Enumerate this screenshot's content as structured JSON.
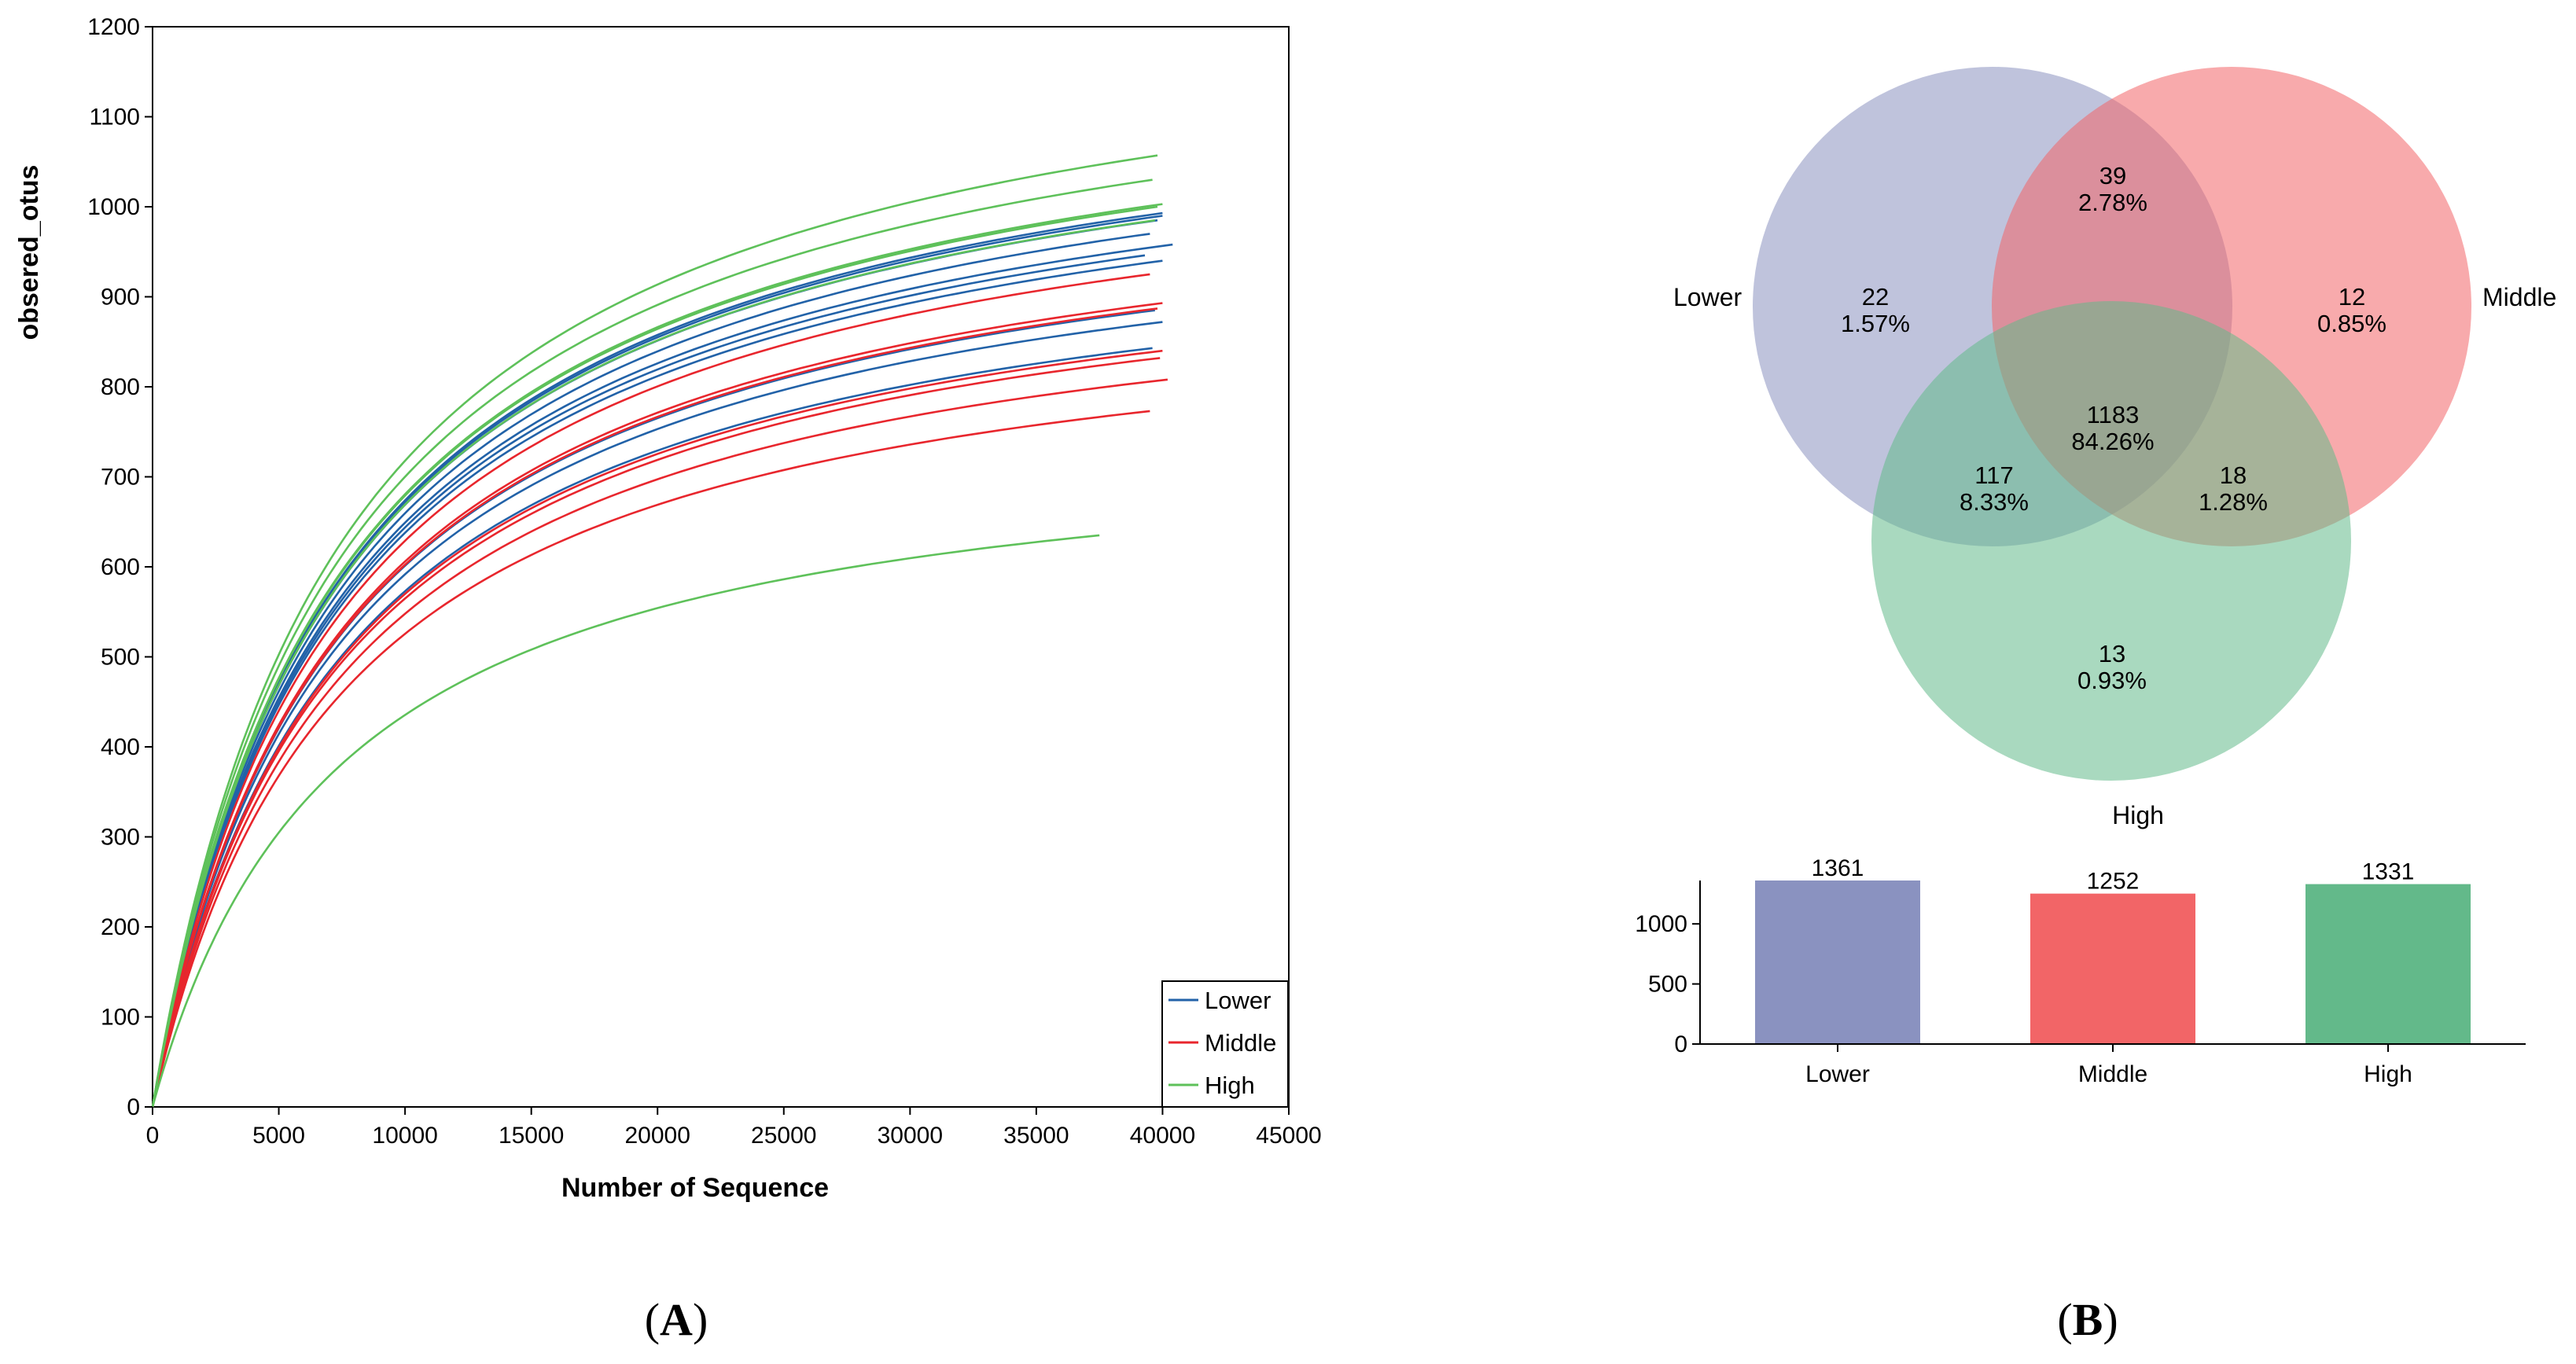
{
  "colors": {
    "lower": "#2262a8",
    "middle": "#e8262d",
    "high": "#5ec15a",
    "venn_lower": "#8a92c0",
    "venn_middle": "#f26567",
    "venn_high": "#63b98a"
  },
  "panel_labels": {
    "a_open": "(",
    "a_letter": "A",
    "a_close": ")",
    "b_open": "(",
    "b_letter": "B",
    "b_close": ")"
  },
  "chart_data": [
    {
      "type": "line",
      "title": "",
      "xlabel": "Number of Sequence",
      "ylabel": "obsered_otus",
      "xlim": [
        0,
        45000
      ],
      "ylim": [
        0,
        1200
      ],
      "x_ticks": [
        "0",
        "5000",
        "10000",
        "15000",
        "20000",
        "25000",
        "30000",
        "35000",
        "40000",
        "45000"
      ],
      "y_ticks": [
        "0",
        "100",
        "200",
        "300",
        "400",
        "500",
        "600",
        "700",
        "800",
        "900",
        "1000",
        "1100",
        "1200"
      ],
      "legend": {
        "position": "bottom-right",
        "entries": [
          {
            "label": "Lower",
            "color_key": "lower"
          },
          {
            "label": "Middle",
            "color_key": "middle"
          },
          {
            "label": "High",
            "color_key": "high"
          }
        ]
      },
      "curve_x": [
        0,
        2000,
        5000,
        10000,
        15000,
        20000,
        25000,
        30000,
        35000,
        40000
      ],
      "series": [
        {
          "name": "Lower",
          "group": "lower",
          "end_x": 40000,
          "end_y": 993
        },
        {
          "name": "Lower",
          "group": "lower",
          "end_x": 40000,
          "end_y": 990
        },
        {
          "name": "Lower",
          "group": "lower",
          "end_x": 39800,
          "end_y": 985
        },
        {
          "name": "Lower",
          "group": "lower",
          "end_x": 39500,
          "end_y": 970
        },
        {
          "name": "Lower",
          "group": "lower",
          "end_x": 40400,
          "end_y": 958
        },
        {
          "name": "Lower",
          "group": "lower",
          "end_x": 39300,
          "end_y": 946
        },
        {
          "name": "Lower",
          "group": "lower",
          "end_x": 40000,
          "end_y": 940
        },
        {
          "name": "Lower",
          "group": "lower",
          "end_x": 39700,
          "end_y": 885
        },
        {
          "name": "Lower",
          "group": "lower",
          "end_x": 40000,
          "end_y": 872
        },
        {
          "name": "Lower",
          "group": "lower",
          "end_x": 39600,
          "end_y": 843
        },
        {
          "name": "Middle",
          "group": "middle",
          "end_x": 39500,
          "end_y": 925
        },
        {
          "name": "Middle",
          "group": "middle",
          "end_x": 40000,
          "end_y": 893
        },
        {
          "name": "Middle",
          "group": "middle",
          "end_x": 39800,
          "end_y": 887
        },
        {
          "name": "Middle",
          "group": "middle",
          "end_x": 40000,
          "end_y": 840
        },
        {
          "name": "Middle",
          "group": "middle",
          "end_x": 39900,
          "end_y": 832
        },
        {
          "name": "Middle",
          "group": "middle",
          "end_x": 40200,
          "end_y": 808
        },
        {
          "name": "Middle",
          "group": "middle",
          "end_x": 39500,
          "end_y": 773
        },
        {
          "name": "High",
          "group": "high",
          "end_x": 39800,
          "end_y": 1057
        },
        {
          "name": "High",
          "group": "high",
          "end_x": 39600,
          "end_y": 1030
        },
        {
          "name": "High",
          "group": "high",
          "end_x": 40000,
          "end_y": 1003
        },
        {
          "name": "High",
          "group": "high",
          "end_x": 39800,
          "end_y": 1000
        },
        {
          "name": "High",
          "group": "high",
          "end_x": 39700,
          "end_y": 985
        },
        {
          "name": "High",
          "group": "high",
          "end_x": 37500,
          "end_y": 635
        }
      ]
    },
    {
      "type": "venn",
      "sets": [
        "Lower",
        "Middle",
        "High"
      ],
      "regions": [
        {
          "id": "lower_only",
          "count": "22",
          "percent": "1.57%"
        },
        {
          "id": "middle_only",
          "count": "12",
          "percent": "0.85%"
        },
        {
          "id": "high_only",
          "count": "13",
          "percent": "0.93%"
        },
        {
          "id": "lower_middle",
          "count": "39",
          "percent": "2.78%"
        },
        {
          "id": "lower_high",
          "count": "117",
          "percent": "8.33%"
        },
        {
          "id": "middle_high",
          "count": "18",
          "percent": "1.28%"
        },
        {
          "id": "all",
          "count": "1183",
          "percent": "84.26%"
        }
      ]
    },
    {
      "type": "bar",
      "categories": [
        "Lower",
        "Middle",
        "High"
      ],
      "values": [
        1361,
        1252,
        1331
      ],
      "value_labels": [
        "1361",
        "1252",
        "1331"
      ],
      "ylim": [
        0,
        1361
      ],
      "y_ticks": [
        "0",
        "500",
        "1000"
      ]
    }
  ]
}
